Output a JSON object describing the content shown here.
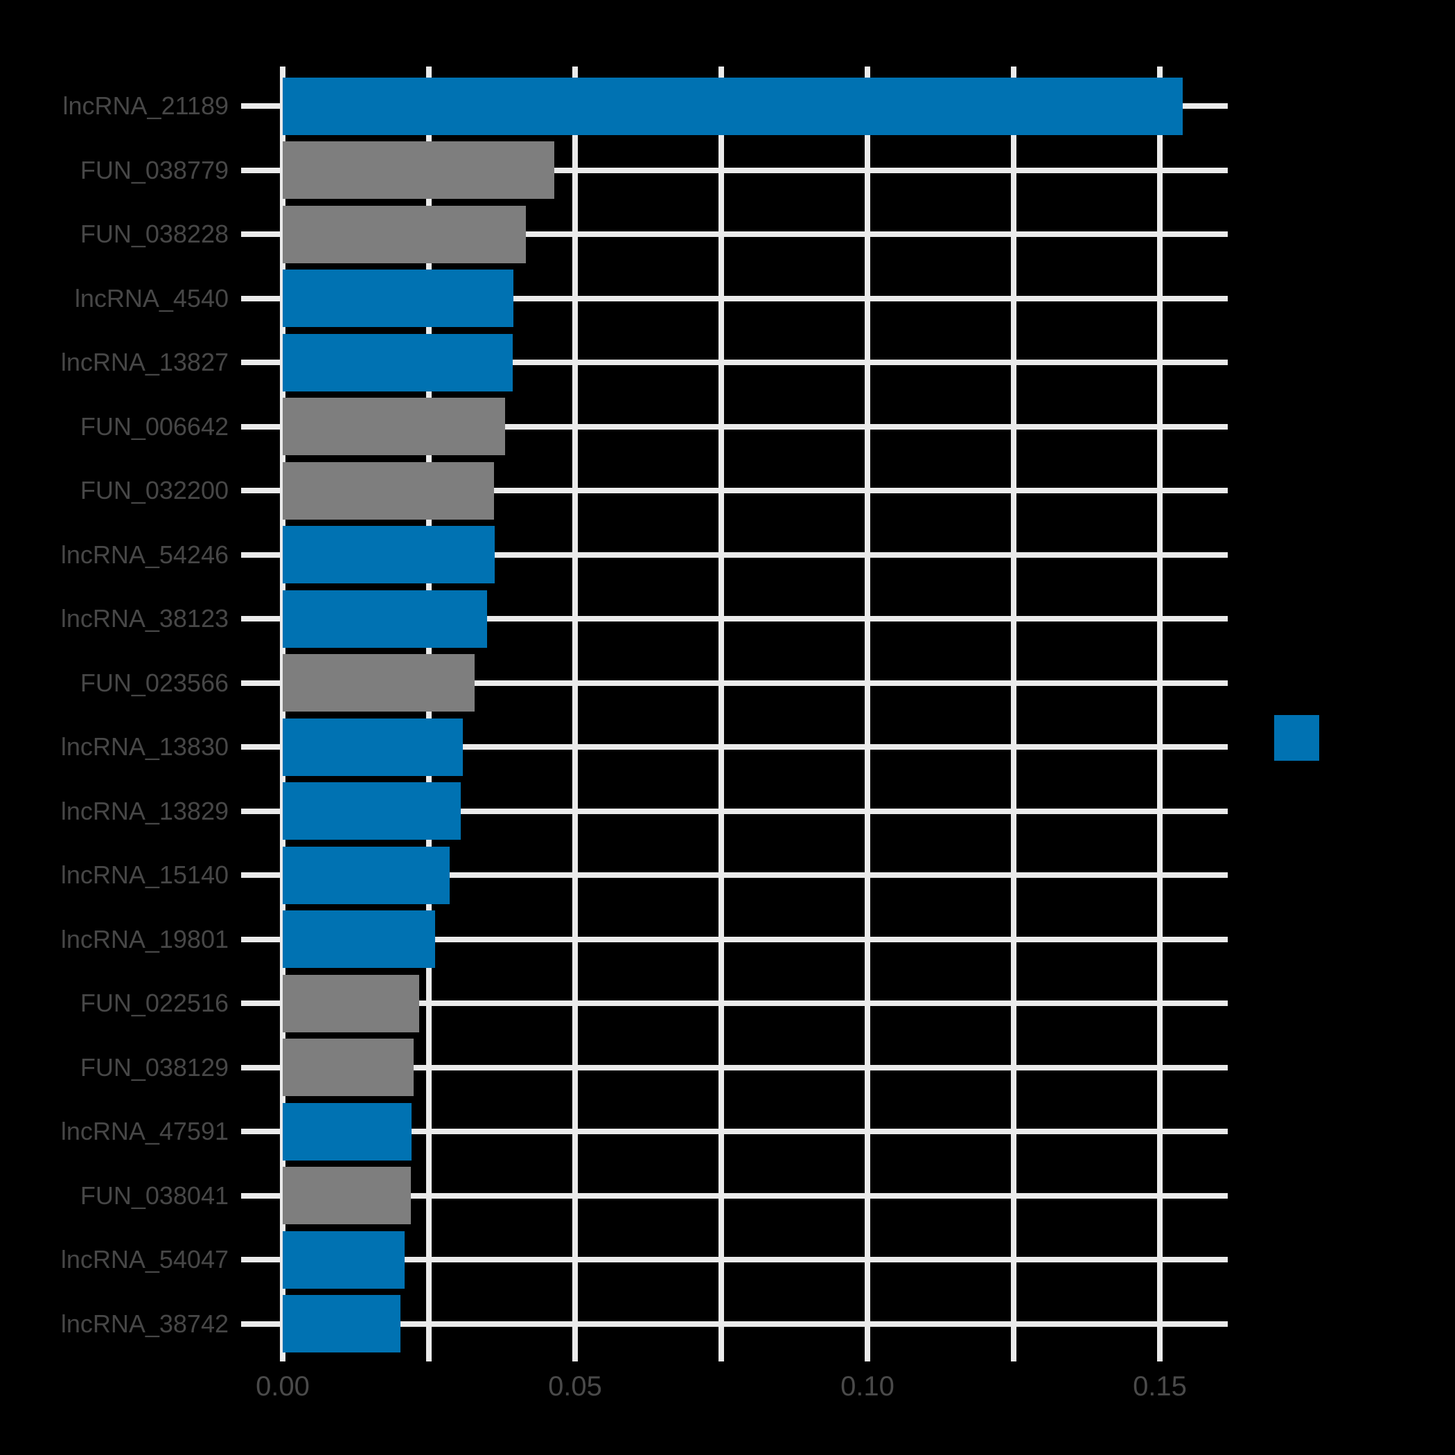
{
  "chart_data": {
    "type": "bar",
    "orientation": "horizontal",
    "title": "",
    "xlabel": "",
    "ylabel": "",
    "xlim": [
      0,
      0.1616
    ],
    "grid": true,
    "x_major_ticks": [
      {
        "value": 0.0,
        "label": "0.00"
      },
      {
        "value": 0.05,
        "label": "0.05"
      },
      {
        "value": 0.1,
        "label": "0.10"
      },
      {
        "value": 0.15,
        "label": "0.15"
      }
    ],
    "x_minor_ticks": [
      0.025,
      0.075,
      0.125
    ],
    "group_colors": {
      "lncRNA": "#0072b2",
      "FUN": "#7e7e7e"
    },
    "bars": [
      {
        "label": "lncRNA_21189",
        "value": 0.1539,
        "group": "lncRNA"
      },
      {
        "label": "FUN_038779",
        "value": 0.0464,
        "group": "FUN"
      },
      {
        "label": "FUN_038228",
        "value": 0.0416,
        "group": "FUN"
      },
      {
        "label": "lncRNA_4540",
        "value": 0.0395,
        "group": "lncRNA"
      },
      {
        "label": "lncRNA_13827",
        "value": 0.0393,
        "group": "lncRNA"
      },
      {
        "label": "FUN_006642",
        "value": 0.038,
        "group": "FUN"
      },
      {
        "label": "FUN_032200",
        "value": 0.0361,
        "group": "FUN"
      },
      {
        "label": "lncRNA_54246",
        "value": 0.0362,
        "group": "lncRNA"
      },
      {
        "label": "lncRNA_38123",
        "value": 0.035,
        "group": "lncRNA"
      },
      {
        "label": "FUN_023566",
        "value": 0.0328,
        "group": "FUN"
      },
      {
        "label": "lncRNA_13830",
        "value": 0.0308,
        "group": "lncRNA"
      },
      {
        "label": "lncRNA_13829",
        "value": 0.0305,
        "group": "lncRNA"
      },
      {
        "label": "lncRNA_15140",
        "value": 0.0286,
        "group": "lncRNA"
      },
      {
        "label": "lncRNA_19801",
        "value": 0.0261,
        "group": "lncRNA"
      },
      {
        "label": "FUN_022516",
        "value": 0.0234,
        "group": "FUN"
      },
      {
        "label": "FUN_038129",
        "value": 0.0224,
        "group": "FUN"
      },
      {
        "label": "lncRNA_47591",
        "value": 0.022,
        "group": "lncRNA"
      },
      {
        "label": "FUN_038041",
        "value": 0.0219,
        "group": "FUN"
      },
      {
        "label": "lncRNA_54047",
        "value": 0.0208,
        "group": "lncRNA"
      },
      {
        "label": "lncRNA_38742",
        "value": 0.0201,
        "group": "lncRNA"
      }
    ],
    "legend": {
      "position": "right",
      "entries": [
        {
          "swatch_color": "#0072b2",
          "label": ""
        }
      ]
    }
  },
  "colors": {
    "background": "#000000",
    "grid": "#ebebeb",
    "bar_blue": "#0072b2",
    "bar_gray": "#7e7e7e",
    "y_label_text": "#474747",
    "x_tick_text": "#4a4a4a"
  }
}
